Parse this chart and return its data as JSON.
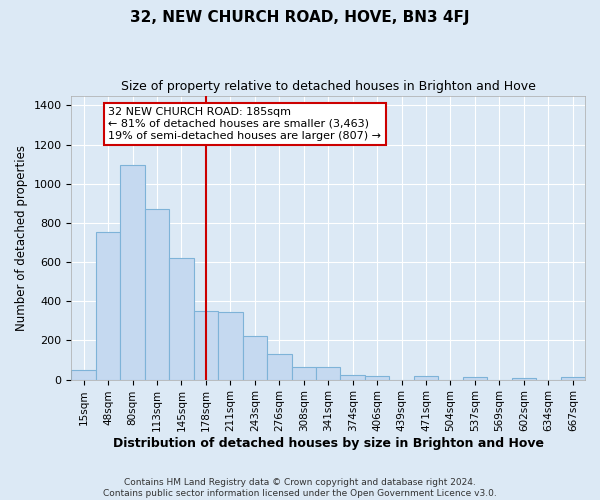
{
  "title": "32, NEW CHURCH ROAD, HOVE, BN3 4FJ",
  "subtitle": "Size of property relative to detached houses in Brighton and Hove",
  "xlabel": "Distribution of detached houses by size in Brighton and Hove",
  "ylabel": "Number of detached properties",
  "footer": "Contains HM Land Registry data © Crown copyright and database right 2024.\nContains public sector information licensed under the Open Government Licence v3.0.",
  "categories": [
    "15sqm",
    "48sqm",
    "80sqm",
    "113sqm",
    "145sqm",
    "178sqm",
    "211sqm",
    "243sqm",
    "276sqm",
    "308sqm",
    "341sqm",
    "374sqm",
    "406sqm",
    "439sqm",
    "471sqm",
    "504sqm",
    "537sqm",
    "569sqm",
    "602sqm",
    "634sqm",
    "667sqm"
  ],
  "values": [
    50,
    755,
    1095,
    870,
    620,
    350,
    345,
    225,
    130,
    65,
    65,
    25,
    20,
    0,
    20,
    0,
    13,
    0,
    8,
    0,
    12
  ],
  "bar_color": "#c5d9f0",
  "bar_edge_color": "#7eb3d8",
  "highlight_index": 5,
  "highlight_color": "#cc0000",
  "annotation_text": "32 NEW CHURCH ROAD: 185sqm\n← 81% of detached houses are smaller (3,463)\n19% of semi-detached houses are larger (807) →",
  "ylim": [
    0,
    1450
  ],
  "yticks": [
    0,
    200,
    400,
    600,
    800,
    1000,
    1200,
    1400
  ],
  "bg_color": "#dce9f5",
  "grid_color": "#ffffff",
  "title_fontsize": 11,
  "subtitle_fontsize": 9,
  "annotation_fontsize": 8
}
